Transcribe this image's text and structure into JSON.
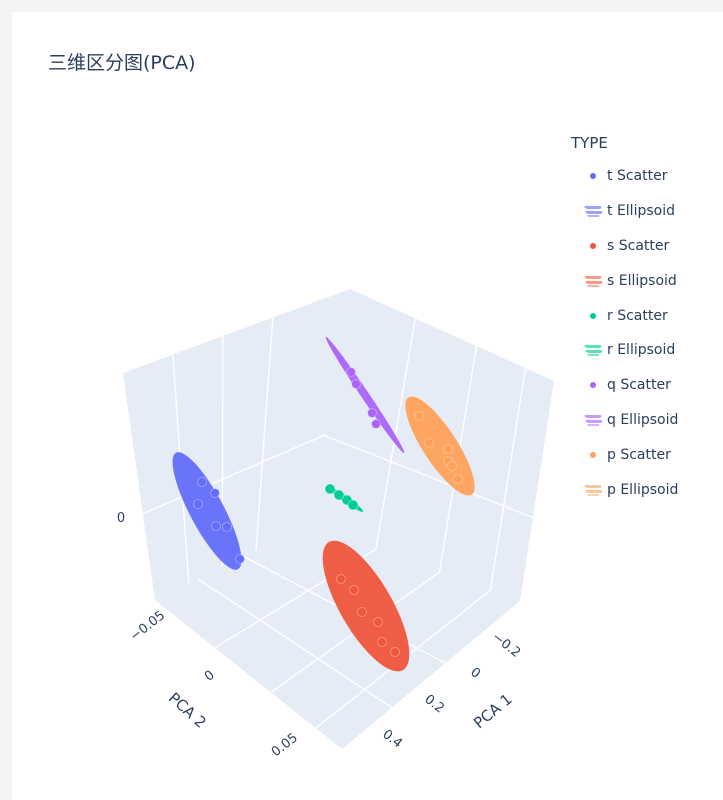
{
  "title": "三维区分图(PCA)",
  "legend": {
    "title": "TYPE",
    "items": [
      {
        "label": "t Scatter",
        "kind": "scatter",
        "color": "#636efa"
      },
      {
        "label": "t Ellipsoid",
        "kind": "ellipsoid",
        "color": "#9ea3fb"
      },
      {
        "label": "s Scatter",
        "kind": "scatter",
        "color": "#ef553b"
      },
      {
        "label": "s Ellipsoid",
        "kind": "ellipsoid",
        "color": "#f59b8a"
      },
      {
        "label": "r Scatter",
        "kind": "scatter",
        "color": "#00cc96"
      },
      {
        "label": "r Ellipsoid",
        "kind": "ellipsoid",
        "color": "#5ee0bb"
      },
      {
        "label": "q Scatter",
        "kind": "scatter",
        "color": "#ab63fa"
      },
      {
        "label": "q Ellipsoid",
        "kind": "ellipsoid",
        "color": "#c99dfb"
      },
      {
        "label": "p Scatter",
        "kind": "scatter",
        "color": "#ffa15a"
      },
      {
        "label": "p Ellipsoid",
        "kind": "ellipsoid",
        "color": "#ffc69b"
      }
    ]
  },
  "chart_data": {
    "type": "scatter",
    "title": "三维区分图(PCA)",
    "axes": {
      "x": {
        "label": "PCA 1",
        "ticks": [
          "−0.2",
          "0",
          "0.2",
          "0.4"
        ]
      },
      "y": {
        "label": "PCA 2",
        "ticks": [
          "−0.05",
          "0",
          "0.05"
        ]
      },
      "z": {
        "label": "",
        "ticks": [
          "0"
        ]
      }
    },
    "series": [
      {
        "name": "t Scatter",
        "type": "scatter3d",
        "color": "#636efa",
        "points": [
          [
            -0.22,
            0.0,
            0.0
          ],
          [
            -0.23,
            -0.01,
            0.01
          ],
          [
            -0.24,
            0.01,
            -0.01
          ],
          [
            -0.22,
            0.02,
            -0.02
          ],
          [
            -0.25,
            0.0,
            0.0
          ],
          [
            -0.21,
            0.03,
            -0.01
          ]
        ]
      },
      {
        "name": "t Ellipsoid",
        "type": "ellipsoid",
        "color": "#636efa"
      },
      {
        "name": "s Scatter",
        "type": "scatter3d",
        "color": "#ef553b",
        "points": [
          [
            0.3,
            0.04,
            -0.02
          ],
          [
            0.32,
            0.03,
            -0.03
          ],
          [
            0.28,
            0.05,
            -0.01
          ],
          [
            0.35,
            0.05,
            -0.03
          ],
          [
            0.33,
            0.06,
            -0.02
          ],
          [
            0.36,
            0.07,
            -0.03
          ]
        ]
      },
      {
        "name": "s Ellipsoid",
        "type": "ellipsoid",
        "color": "#ef553b"
      },
      {
        "name": "r Scatter",
        "type": "scatter3d",
        "color": "#00cc96",
        "points": [
          [
            0.05,
            0.01,
            0.0
          ],
          [
            0.06,
            0.015,
            0.0
          ],
          [
            0.065,
            0.02,
            0.0
          ],
          [
            0.07,
            0.025,
            0.0
          ]
        ]
      },
      {
        "name": "r Ellipsoid",
        "type": "ellipsoid",
        "color": "#00cc96"
      },
      {
        "name": "q Scatter",
        "type": "scatter3d",
        "color": "#ab63fa",
        "points": [
          [
            0.02,
            -0.03,
            0.05
          ],
          [
            0.03,
            -0.03,
            0.045
          ],
          [
            0.04,
            -0.02,
            0.04
          ],
          [
            0.05,
            -0.01,
            0.035
          ]
        ]
      },
      {
        "name": "q Ellipsoid",
        "type": "ellipsoid",
        "color": "#ab63fa"
      },
      {
        "name": "p Scatter",
        "type": "scatter3d",
        "color": "#ffa15a",
        "points": [
          [
            0.2,
            -0.05,
            0.01
          ],
          [
            0.22,
            -0.04,
            0.0
          ],
          [
            0.23,
            -0.04,
            -0.01
          ],
          [
            0.24,
            -0.03,
            -0.01
          ],
          [
            0.25,
            -0.03,
            -0.02
          ],
          [
            0.26,
            -0.02,
            -0.02
          ]
        ]
      },
      {
        "name": "p Ellipsoid",
        "type": "ellipsoid",
        "color": "#ffa15a"
      }
    ],
    "legend": "right"
  }
}
